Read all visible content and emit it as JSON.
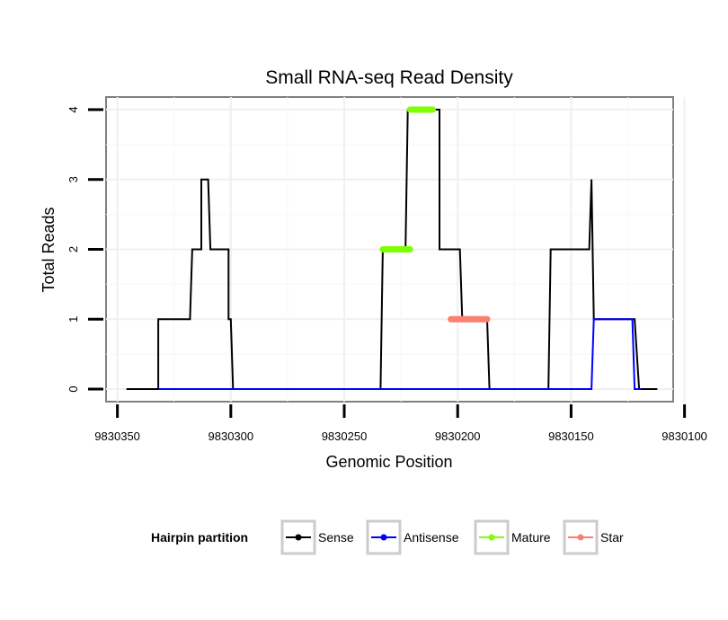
{
  "chart_data": {
    "type": "line",
    "title": "Small RNA-seq Read Density",
    "xlabel": "Genomic Position",
    "ylabel": "Total Reads",
    "x_reversed": true,
    "xlim": [
      9830105,
      9830355
    ],
    "ylim": [
      -0.18,
      4.18
    ],
    "x_ticks": [
      9830350,
      9830300,
      9830250,
      9830200,
      9830150,
      9830100
    ],
    "y_ticks": [
      0,
      1,
      2,
      3,
      4
    ],
    "grid": true,
    "legend": {
      "title": "Hairpin partition",
      "position": "bottom",
      "entries": [
        "Sense",
        "Antisense",
        "Mature",
        "Star"
      ]
    },
    "series": [
      {
        "name": "Sense",
        "color": "#000000",
        "style": "line",
        "x": [
          9830346,
          9830332,
          9830332,
          9830318,
          9830317,
          9830315,
          9830315,
          9830313,
          9830313,
          9830310,
          9830309,
          9830301,
          9830301,
          9830300,
          9830299,
          9830234,
          9830233,
          9830223,
          9830222,
          9830214,
          9830214,
          9830208,
          9830208,
          9830199,
          9830198,
          9830187,
          9830187,
          9830186,
          9830160,
          9830159,
          9830142,
          9830141,
          9830140,
          9830139,
          9830122,
          9830122,
          9830120,
          9830117,
          9830112
        ],
        "y": [
          0,
          0,
          1,
          1,
          2,
          2,
          2,
          2,
          3,
          3,
          2,
          2,
          1,
          1,
          0,
          0,
          2,
          2,
          4,
          4,
          4,
          4,
          2,
          2,
          1,
          1,
          1,
          0,
          0,
          2,
          2,
          3,
          1,
          1,
          1,
          1,
          0,
          0,
          0
        ]
      },
      {
        "name": "Antisense",
        "color": "#0000ff",
        "style": "line",
        "x": [
          9830332,
          9830300,
          9830141,
          9830140,
          9830123,
          9830122,
          9830119
        ],
        "y": [
          0,
          0,
          0,
          1,
          1,
          0,
          0
        ]
      },
      {
        "name": "Mature",
        "color": "#7fff00",
        "style": "segment",
        "segments": [
          {
            "x": [
              9830233,
              9830221
            ],
            "y": 2
          },
          {
            "x": [
              9830221,
              9830211
            ],
            "y": 4
          }
        ]
      },
      {
        "name": "Star",
        "color": "#fa8072",
        "style": "segment",
        "segments": [
          {
            "x": [
              9830203,
              9830187
            ],
            "y": 1
          }
        ]
      }
    ]
  }
}
